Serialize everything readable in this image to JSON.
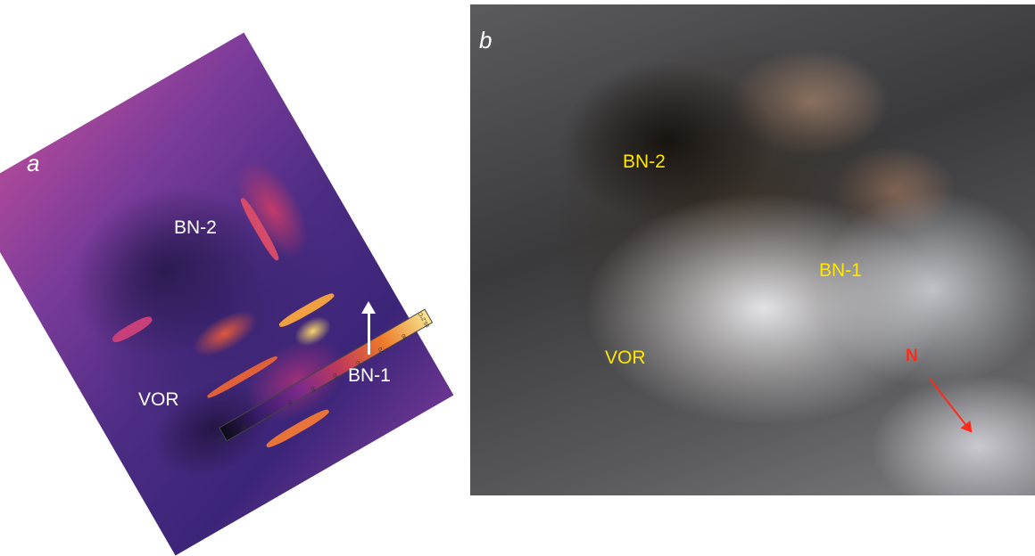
{
  "panel_a": {
    "letter": "a",
    "labels": {
      "bn2": "BN-2",
      "bn1": "BN-1",
      "vor": "VOR"
    },
    "colorbar": {
      "ticks": [
        "1.9",
        "10",
        "20",
        "30",
        "40",
        "50",
        "60",
        "70",
        "80",
        "85.2°C"
      ],
      "colors": [
        "#0d0c18",
        "#3a1e6e",
        "#7e2a8a",
        "#c33b58",
        "#ee7a2a",
        "#f7e58e"
      ]
    }
  },
  "panel_b": {
    "letter": "b",
    "labels": {
      "bn2": "BN-2",
      "bn1": "BN-1",
      "vor": "VOR"
    },
    "north": "N",
    "label_color": "#ffe600",
    "north_color": "#ff2a1a"
  }
}
